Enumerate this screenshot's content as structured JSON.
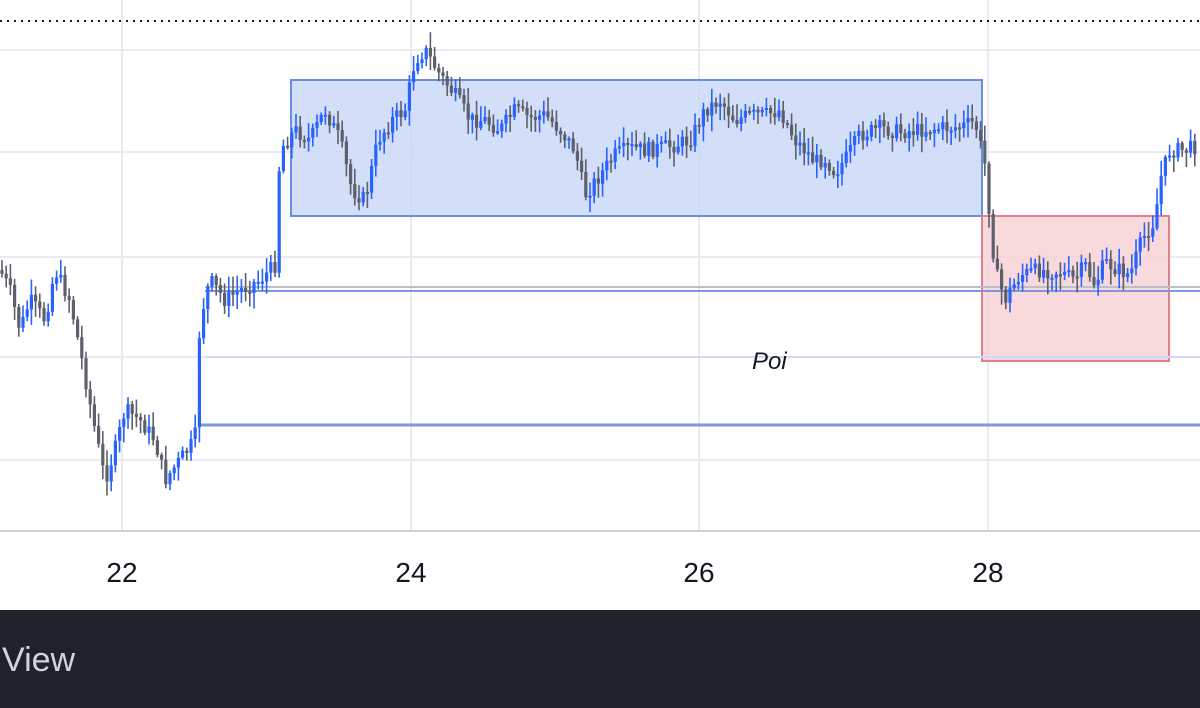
{
  "chart": {
    "x_axis_labels": [
      "22",
      "24",
      "26",
      "28"
    ],
    "annotation_label": "Poi",
    "colors": {
      "up_candle": "#2962ff",
      "down_candle": "#5d606b",
      "range_box_fill": "#c8d7f8",
      "range_box_border": "#6a8fe0",
      "red_box_fill": "#f7d3d7",
      "red_box_border": "#e27f8c",
      "level_line": "#7b97e6",
      "faint_level_line": "#cfd9f5",
      "grid": "#e9ebf0",
      "dotted_line": "#131722"
    }
  },
  "bottom_bar": {
    "view_label": "View"
  }
}
